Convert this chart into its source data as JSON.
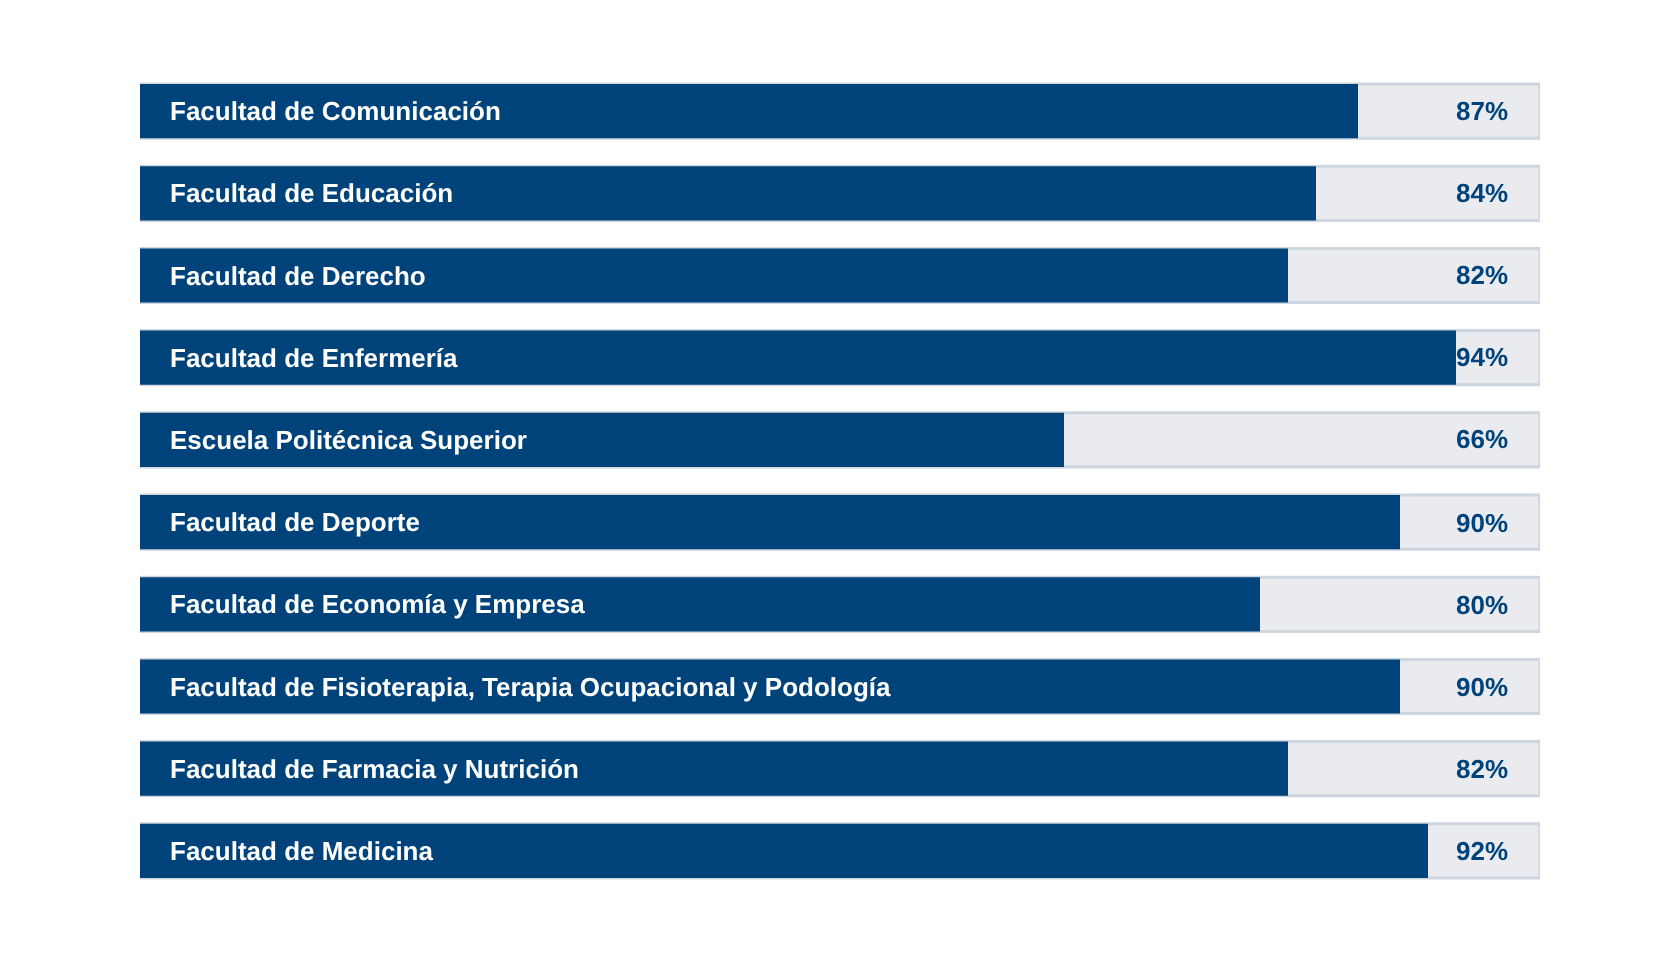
{
  "chart_data": {
    "type": "bar",
    "orientation": "horizontal",
    "categories": [
      "Facultad de Comunicación",
      "Facultad de Educación",
      "Facultad de Derecho",
      "Facultad de Enfermería",
      "Escuela Politécnica Superior",
      "Facultad de Deporte",
      "Facultad de Economía y Empresa",
      "Facultad de Fisioterapia, Terapia Ocupacional y Podología",
      "Facultad de Farmacia y Nutrición",
      "Facultad de Medicina"
    ],
    "values": [
      87,
      84,
      82,
      94,
      66,
      90,
      80,
      90,
      82,
      92
    ],
    "value_labels": [
      "87%",
      "84%",
      "82%",
      "94%",
      "66%",
      "90%",
      "80%",
      "90%",
      "82%",
      "92%"
    ],
    "color": "#00437a",
    "xlim": [
      0,
      100
    ],
    "tick_labels": "y",
    "grid": false,
    "legend": false
  }
}
